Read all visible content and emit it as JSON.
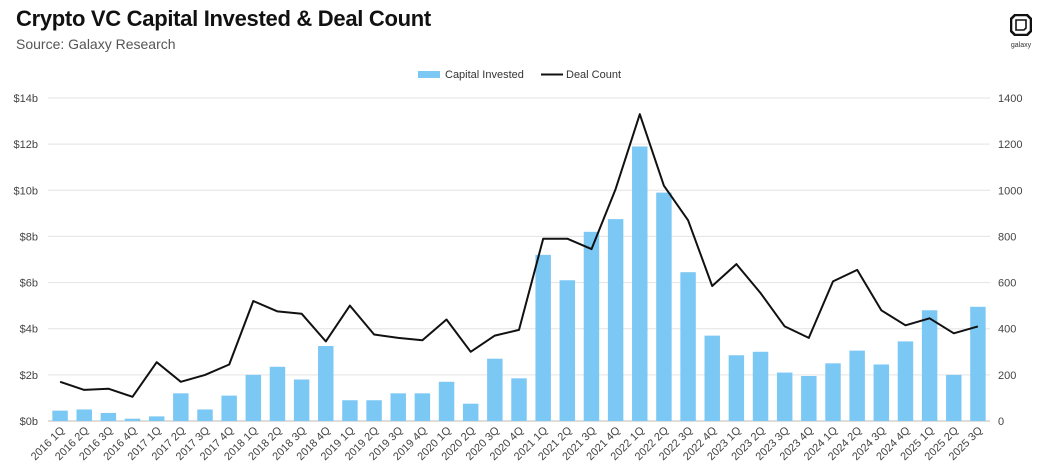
{
  "header": {
    "title": "Crypto VC Capital Invested & Deal Count",
    "subtitle": "Source: Galaxy Research",
    "logo_text": "galaxy"
  },
  "colors": {
    "bar": "#7cc8f4",
    "line": "#111111",
    "grid": "#e3e3e3"
  },
  "chart_data": {
    "type": "bar+line",
    "title": "Crypto VC Capital Invested & Deal Count",
    "categories": [
      "2016 1Q",
      "2016 2Q",
      "2016 3Q",
      "2016 4Q",
      "2017 1Q",
      "2017 2Q",
      "2017 3Q",
      "2017 4Q",
      "2018 1Q",
      "2018 2Q",
      "2018 3Q",
      "2018 4Q",
      "2019 1Q",
      "2019 2Q",
      "2019 3Q",
      "2019 4Q",
      "2020 1Q",
      "2020 2Q",
      "2020 3Q",
      "2020 4Q",
      "2021 1Q",
      "2021 2Q",
      "2021 3Q",
      "2021 4Q",
      "2022 1Q",
      "2022 2Q",
      "2022 3Q",
      "2022 4Q",
      "2023 1Q",
      "2023 2Q",
      "2023 3Q",
      "2023 4Q",
      "2024 1Q",
      "2024 2Q",
      "2024 3Q",
      "2024 4Q",
      "2025 1Q",
      "2025 2Q",
      "2025 3Q"
    ],
    "series": [
      {
        "name": "Capital Invested",
        "type": "bar",
        "axis": "left",
        "values": [
          0.45,
          0.5,
          0.35,
          0.1,
          0.2,
          1.2,
          0.5,
          1.1,
          2.0,
          2.35,
          1.8,
          3.25,
          0.9,
          0.9,
          1.2,
          1.2,
          1.7,
          0.75,
          2.7,
          1.85,
          7.2,
          6.1,
          8.2,
          8.75,
          11.9,
          9.9,
          6.45,
          3.7,
          2.85,
          3.0,
          2.1,
          1.95,
          2.5,
          3.05,
          2.45,
          3.45,
          4.8,
          2.0,
          4.95
        ]
      },
      {
        "name": "Deal Count",
        "type": "line",
        "axis": "right",
        "values": [
          170,
          135,
          140,
          105,
          255,
          170,
          200,
          245,
          520,
          475,
          465,
          345,
          500,
          375,
          360,
          350,
          440,
          300,
          370,
          395,
          790,
          790,
          745,
          1005,
          1330,
          1020,
          870,
          585,
          680,
          555,
          410,
          360,
          605,
          655,
          480,
          415,
          445,
          380,
          410
        ]
      }
    ],
    "y_left": {
      "ylim": [
        0,
        14
      ],
      "ticks": [
        "$0b",
        "$2b",
        "$4b",
        "$6b",
        "$8b",
        "$10b",
        "$12b",
        "$14b"
      ]
    },
    "y_right": {
      "ylim": [
        0,
        1400
      ],
      "ticks": [
        "0",
        "200",
        "400",
        "600",
        "800",
        "1000",
        "1200",
        "1400"
      ]
    },
    "legend": {
      "placement": "top-center",
      "entries": [
        "Capital Invested",
        "Deal Count"
      ]
    },
    "grid": true
  }
}
